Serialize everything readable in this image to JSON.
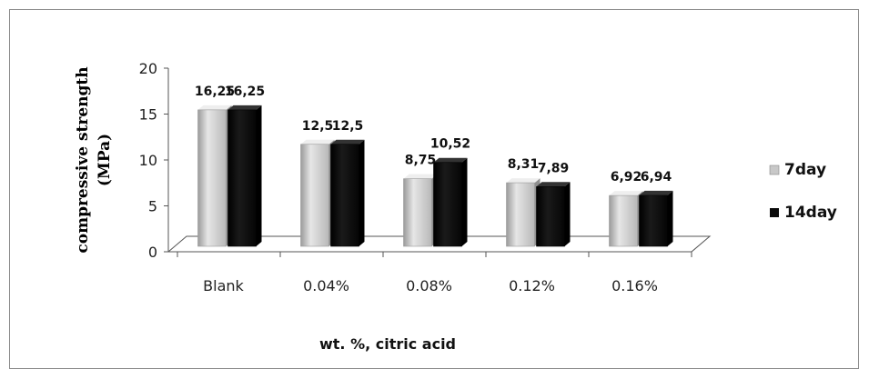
{
  "chart_data": {
    "type": "bar",
    "categories": [
      "Blank",
      "0.04%",
      "0.08%",
      "0.12%",
      "0.16%"
    ],
    "series": [
      {
        "name": "7day",
        "values": [
          16.25,
          12.5,
          8.75,
          8.31,
          6.92
        ],
        "labels": [
          "16,25",
          "12,5",
          "8,75",
          "8,31",
          "6,92"
        ],
        "color": "#c8c8c8"
      },
      {
        "name": "14day",
        "values": [
          16.25,
          12.5,
          10.52,
          7.89,
          6.94
        ],
        "labels": [
          "16,25",
          "12,5",
          "10,52",
          "7,89",
          "6,94"
        ],
        "color": "#0a0a0a"
      }
    ],
    "title": "",
    "xlabel": "wt. %, citric acid",
    "ylabel_line1": "compressive strength",
    "ylabel_line2": "(MPa)",
    "ylim": [
      0,
      20
    ],
    "yticks": [
      "0",
      "5",
      "10",
      "15",
      "20"
    ],
    "grid": false,
    "legend_position": "right",
    "style": "3d-clustered-bar"
  }
}
